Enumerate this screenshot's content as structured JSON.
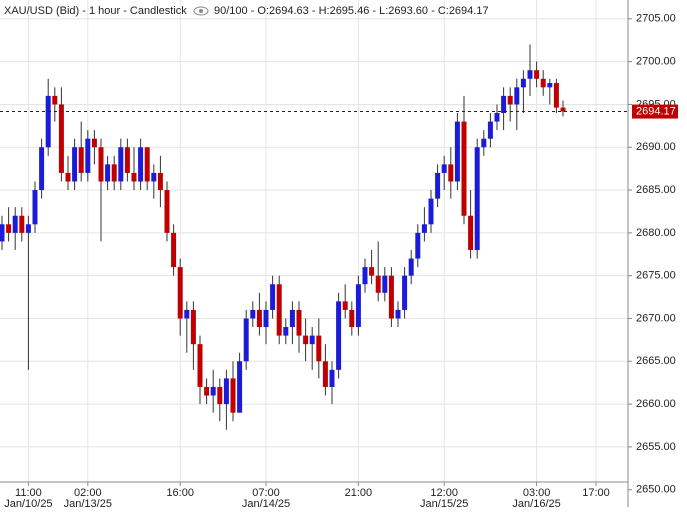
{
  "chart_data": {
    "type": "candlestick",
    "title": "XAU/USD (Bid) - 1 hour - Candlestick",
    "subtitle": "90/100 - O:2694.63 - H:2695.46 - L:2693.60 - C:2694.17",
    "up_color": "#1c1cd8",
    "down_color": "#c00000",
    "wick_color": "#333333",
    "grid": true,
    "ylim": [
      2650.9,
      2707.2
    ],
    "yticks": [
      2650,
      2655,
      2660,
      2665,
      2670,
      2675,
      2680,
      2685,
      2690,
      2695,
      2700,
      2705
    ],
    "yticks_labels": [
      "2650.00",
      "2655.00",
      "2660.00",
      "2665.00",
      "2670.00",
      "2675.00",
      "2680.00",
      "2685.00",
      "2690.00",
      "2695.00",
      "2700.00",
      "2705.00"
    ],
    "x_ticks": [
      {
        "at": 4,
        "time": "11:00",
        "date": "Jan/10/25"
      },
      {
        "at": 13,
        "time": "02:00",
        "date": "Jan/13/25"
      },
      {
        "at": 27,
        "time": "16:00"
      },
      {
        "at": 40,
        "time": "07:00",
        "date": "Jan/14/25"
      },
      {
        "at": 54,
        "time": "21:00"
      },
      {
        "at": 67,
        "time": "12:00",
        "date": "Jan/15/25"
      },
      {
        "at": 81,
        "time": "03:00",
        "date": "Jan/16/25"
      },
      {
        "at": 90,
        "time": "17:00"
      }
    ],
    "last_price": 2694.17,
    "candles": [
      [
        2679,
        2682,
        2678,
        2681
      ],
      [
        2681,
        2683,
        2679,
        2680
      ],
      [
        2680,
        2683,
        2678,
        2682
      ],
      [
        2682,
        2683,
        2679,
        2680
      ],
      [
        2680,
        2682,
        2664,
        2681
      ],
      [
        2681,
        2686,
        2680,
        2685
      ],
      [
        2685,
        2691,
        2684,
        2690
      ],
      [
        2690,
        2698,
        2689,
        2696
      ],
      [
        2696,
        2697,
        2693,
        2695
      ],
      [
        2695,
        2697,
        2686,
        2687
      ],
      [
        2687,
        2689,
        2685,
        2686
      ],
      [
        2686,
        2691,
        2685,
        2690
      ],
      [
        2690,
        2693,
        2686,
        2687
      ],
      [
        2687,
        2692,
        2686,
        2691
      ],
      [
        2691,
        2692,
        2688,
        2690
      ],
      [
        2690,
        2691,
        2679,
        2686
      ],
      [
        2686,
        2689,
        2685,
        2688
      ],
      [
        2688,
        2689,
        2685,
        2686
      ],
      [
        2686,
        2691,
        2685,
        2690
      ],
      [
        2690,
        2691,
        2686,
        2687
      ],
      [
        2687,
        2690,
        2685,
        2686
      ],
      [
        2686,
        2691,
        2685,
        2690
      ],
      [
        2690,
        2690,
        2685,
        2686
      ],
      [
        2686,
        2688,
        2684,
        2687
      ],
      [
        2687,
        2689,
        2683,
        2685
      ],
      [
        2685,
        2686,
        2679,
        2680
      ],
      [
        2680,
        2681,
        2675,
        2676
      ],
      [
        2676,
        2677,
        2668,
        2670
      ],
      [
        2670,
        2672,
        2666,
        2671
      ],
      [
        2671,
        2672,
        2664,
        2667
      ],
      [
        2667,
        2668,
        2660,
        2662
      ],
      [
        2662,
        2663,
        2660,
        2661
      ],
      [
        2661,
        2664,
        2659,
        2662
      ],
      [
        2662,
        2663,
        2658,
        2660
      ],
      [
        2660,
        2664,
        2657,
        2663
      ],
      [
        2663,
        2665,
        2658,
        2659
      ],
      [
        2659,
        2666,
        2659,
        2665
      ],
      [
        2665,
        2671,
        2664,
        2670
      ],
      [
        2670,
        2672,
        2669,
        2671
      ],
      [
        2671,
        2673,
        2668,
        2669
      ],
      [
        2669,
        2672,
        2667,
        2671
      ],
      [
        2671,
        2675,
        2670,
        2674
      ],
      [
        2674,
        2675,
        2667,
        2668
      ],
      [
        2668,
        2670,
        2667,
        2669
      ],
      [
        2669,
        2672,
        2667,
        2671
      ],
      [
        2671,
        2672,
        2666,
        2668
      ],
      [
        2668,
        2670,
        2665,
        2667
      ],
      [
        2667,
        2669,
        2664,
        2668
      ],
      [
        2668,
        2670,
        2663,
        2665
      ],
      [
        2665,
        2667,
        2661,
        2662
      ],
      [
        2662,
        2665,
        2660,
        2664
      ],
      [
        2664,
        2673,
        2663,
        2672
      ],
      [
        2672,
        2674,
        2670,
        2671
      ],
      [
        2671,
        2672,
        2668,
        2669
      ],
      [
        2669,
        2675,
        2668,
        2674
      ],
      [
        2674,
        2677,
        2673,
        2676
      ],
      [
        2676,
        2678,
        2674,
        2675
      ],
      [
        2675,
        2679,
        2672,
        2673
      ],
      [
        2673,
        2676,
        2672,
        2675
      ],
      [
        2675,
        2676,
        2669,
        2670
      ],
      [
        2670,
        2672,
        2669,
        2671
      ],
      [
        2671,
        2676,
        2670,
        2675
      ],
      [
        2675,
        2678,
        2674,
        2677
      ],
      [
        2677,
        2681,
        2676,
        2680
      ],
      [
        2680,
        2683,
        2679,
        2681
      ],
      [
        2681,
        2685,
        2680,
        2684
      ],
      [
        2684,
        2688,
        2683,
        2687
      ],
      [
        2687,
        2689,
        2685,
        2688
      ],
      [
        2688,
        2690,
        2684,
        2686
      ],
      [
        2686,
        2694,
        2685,
        2693
      ],
      [
        2693,
        2696,
        2681,
        2682
      ],
      [
        2682,
        2685,
        2677,
        2678
      ],
      [
        2678,
        2691,
        2677,
        2690
      ],
      [
        2690,
        2692,
        2689,
        2691
      ],
      [
        2691,
        2694,
        2690,
        2693
      ],
      [
        2693,
        2695,
        2692,
        2694
      ],
      [
        2694,
        2697,
        2692,
        2696
      ],
      [
        2696,
        2697,
        2693,
        2695
      ],
      [
        2695,
        2698,
        2692,
        2697
      ],
      [
        2697,
        2699,
        2694,
        2698
      ],
      [
        2698,
        2702,
        2696,
        2699
      ],
      [
        2699,
        2700,
        2697,
        2698
      ],
      [
        2698,
        2699,
        2696,
        2697
      ],
      [
        2697,
        2698,
        2695,
        2697.5
      ],
      [
        2697.5,
        2698,
        2694,
        2694.63
      ],
      [
        2694.63,
        2695.46,
        2693.6,
        2694.17
      ]
    ]
  }
}
